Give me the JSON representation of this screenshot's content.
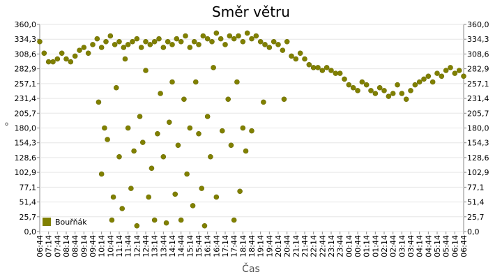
{
  "chart_data": {
    "type": "scatter",
    "title": "Směr větru",
    "x_label": "Čas",
    "y_label": "°",
    "xlim": [
      0,
      1440
    ],
    "ylim": [
      0,
      360
    ],
    "grid": true,
    "legend": "lower-left",
    "xticks": [
      {
        "value": 0,
        "label": "06:44"
      },
      {
        "value": 30,
        "label": "07:14"
      },
      {
        "value": 60,
        "label": "07:44"
      },
      {
        "value": 90,
        "label": "08:14"
      },
      {
        "value": 120,
        "label": "08:44"
      },
      {
        "value": 150,
        "label": "09:14"
      },
      {
        "value": 180,
        "label": "09:44"
      },
      {
        "value": 210,
        "label": "10:14"
      },
      {
        "value": 240,
        "label": "10:44"
      },
      {
        "value": 270,
        "label": "11:14"
      },
      {
        "value": 300,
        "label": "11:44"
      },
      {
        "value": 330,
        "label": "12:14"
      },
      {
        "value": 360,
        "label": "12:44"
      },
      {
        "value": 390,
        "label": "13:14"
      },
      {
        "value": 420,
        "label": "13:44"
      },
      {
        "value": 450,
        "label": "14:14"
      },
      {
        "value": 480,
        "label": "14:44"
      },
      {
        "value": 510,
        "label": "15:14"
      },
      {
        "value": 540,
        "label": "15:44"
      },
      {
        "value": 570,
        "label": "16:14"
      },
      {
        "value": 600,
        "label": "16:44"
      },
      {
        "value": 630,
        "label": "17:14"
      },
      {
        "value": 660,
        "label": "17:44"
      },
      {
        "value": 690,
        "label": "18:14"
      },
      {
        "value": 720,
        "label": "18:44"
      },
      {
        "value": 750,
        "label": "19:14"
      },
      {
        "value": 780,
        "label": "19:44"
      },
      {
        "value": 810,
        "label": "20:14"
      },
      {
        "value": 840,
        "label": "20:44"
      },
      {
        "value": 870,
        "label": "21:14"
      },
      {
        "value": 900,
        "label": "21:44"
      },
      {
        "value": 930,
        "label": "22:14"
      },
      {
        "value": 960,
        "label": "22:44"
      },
      {
        "value": 990,
        "label": "23:14"
      },
      {
        "value": 1020,
        "label": "23:44"
      },
      {
        "value": 1050,
        "label": "00:14"
      },
      {
        "value": 1080,
        "label": "00:44"
      },
      {
        "value": 1110,
        "label": "01:14"
      },
      {
        "value": 1140,
        "label": "01:44"
      },
      {
        "value": 1170,
        "label": "02:14"
      },
      {
        "value": 1200,
        "label": "02:44"
      },
      {
        "value": 1230,
        "label": "03:14"
      },
      {
        "value": 1260,
        "label": "03:44"
      },
      {
        "value": 1290,
        "label": "04:14"
      },
      {
        "value": 1320,
        "label": "04:44"
      },
      {
        "value": 1350,
        "label": "05:14"
      },
      {
        "value": 1380,
        "label": "05:44"
      },
      {
        "value": 1410,
        "label": "06:14"
      },
      {
        "value": 1440,
        "label": "06:44"
      }
    ],
    "yticks": [
      {
        "value": 0,
        "label": "0,0"
      },
      {
        "value": 25.7,
        "label": "25,7"
      },
      {
        "value": 51.4,
        "label": "51,4"
      },
      {
        "value": 77.1,
        "label": "77,1"
      },
      {
        "value": 102.9,
        "label": "102,9"
      },
      {
        "value": 128.6,
        "label": "128,6"
      },
      {
        "value": 154.3,
        "label": "154,3"
      },
      {
        "value": 180,
        "label": "180,0"
      },
      {
        "value": 205.7,
        "label": "205,7"
      },
      {
        "value": 231.4,
        "label": "231,4"
      },
      {
        "value": 257.1,
        "label": "257,1"
      },
      {
        "value": 282.9,
        "label": "282,9"
      },
      {
        "value": 308.6,
        "label": "308,6"
      },
      {
        "value": 334.3,
        "label": "334,3"
      },
      {
        "value": 360,
        "label": "360,0"
      }
    ],
    "x": [
      0,
      15,
      30,
      45,
      60,
      75,
      90,
      105,
      120,
      135,
      150,
      165,
      180,
      195,
      210,
      225,
      240,
      255,
      270,
      285,
      300,
      315,
      330,
      345,
      360,
      375,
      390,
      405,
      420,
      435,
      450,
      465,
      480,
      495,
      510,
      525,
      540,
      555,
      570,
      585,
      600,
      615,
      630,
      645,
      660,
      675,
      690,
      705,
      720,
      735,
      750,
      765,
      780,
      795,
      810,
      825,
      840,
      855,
      870,
      885,
      900,
      915,
      930,
      945,
      960,
      975,
      990,
      1005,
      1020,
      1035,
      1050,
      1065,
      1080,
      1095,
      1110,
      1125,
      1140,
      1155,
      1170,
      1185,
      1200,
      1215,
      1230,
      1245,
      1260,
      1275,
      1290,
      1305,
      1320,
      1335,
      1350,
      1365,
      1380,
      1395,
      1410,
      1425,
      1440,
      200,
      210,
      220,
      230,
      245,
      250,
      260,
      270,
      280,
      290,
      300,
      310,
      320,
      330,
      340,
      350,
      360,
      370,
      380,
      390,
      400,
      410,
      420,
      430,
      440,
      450,
      460,
      470,
      480,
      490,
      500,
      510,
      520,
      530,
      540,
      550,
      560,
      570,
      580,
      590,
      600,
      620,
      640,
      650,
      660,
      670,
      680,
      690,
      700,
      720,
      760,
      830
    ],
    "series": [
      {
        "name": "Bouřňák",
        "color": "#808000",
        "values": [
          330,
          310,
          295,
          295,
          300,
          310,
          300,
          295,
          305,
          315,
          320,
          310,
          325,
          335,
          320,
          330,
          340,
          325,
          330,
          320,
          325,
          330,
          335,
          320,
          330,
          325,
          330,
          335,
          320,
          330,
          325,
          335,
          330,
          340,
          320,
          330,
          325,
          340,
          335,
          330,
          345,
          335,
          325,
          340,
          335,
          340,
          330,
          345,
          335,
          340,
          330,
          325,
          320,
          330,
          325,
          315,
          330,
          305,
          300,
          310,
          300,
          290,
          285,
          285,
          280,
          285,
          280,
          275,
          275,
          265,
          255,
          250,
          245,
          260,
          255,
          245,
          240,
          250,
          245,
          235,
          240,
          255,
          240,
          230,
          245,
          255,
          260,
          265,
          270,
          260,
          275,
          270,
          280,
          285,
          275,
          280,
          270,
          225,
          100,
          180,
          160,
          20,
          60,
          250,
          130,
          40,
          300,
          180,
          75,
          140,
          10,
          200,
          155,
          280,
          60,
          110,
          20,
          170,
          240,
          130,
          15,
          190,
          260,
          65,
          150,
          20,
          230,
          100,
          180,
          45,
          260,
          170,
          75,
          10,
          200,
          130,
          285,
          60,
          175,
          230,
          150,
          20,
          260,
          70,
          180,
          140,
          175,
          225,
          230
        ]
      }
    ]
  }
}
